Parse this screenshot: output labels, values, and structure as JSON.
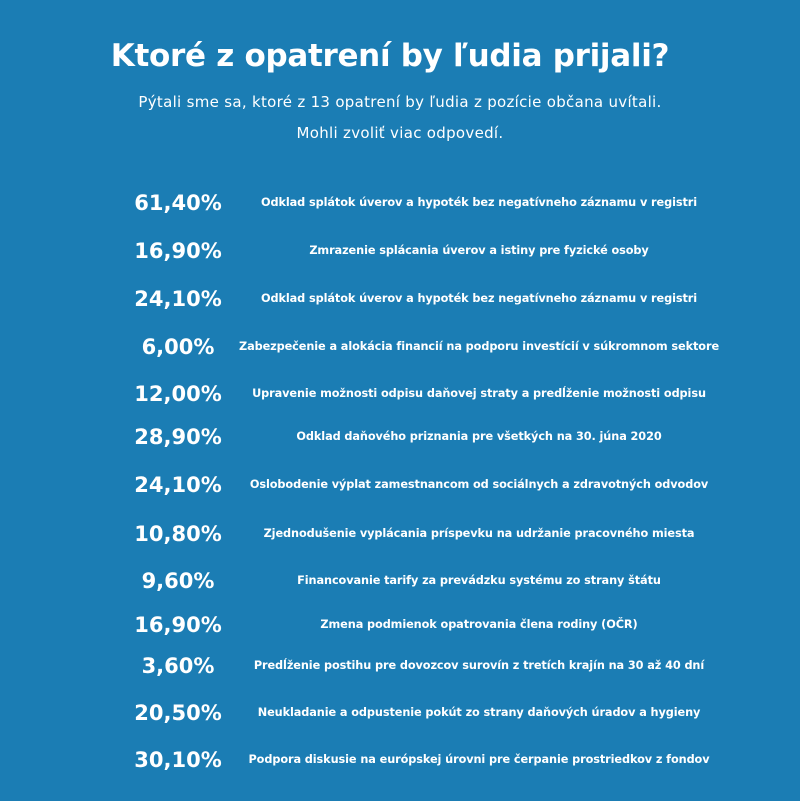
{
  "chart_data": {
    "type": "table",
    "title": "Ktoré z opatrení by ľudia prijali?",
    "subtitle_lines": [
      "Pýtali sme sa, ktoré z 13 opatrení by ľudia z pozície občana uvítali.",
      "Mohli zvoliť viac odpovedí."
    ],
    "rows": [
      {
        "value": 61.4,
        "value_label": "61,40%",
        "label": "Odklad splátok úverov a hypoték bez negatívneho záznamu v registri"
      },
      {
        "value": 16.9,
        "value_label": "16,90%",
        "label": "Zmrazenie splácania úverov a istiny pre fyzické osoby"
      },
      {
        "value": 24.1,
        "value_label": "24,10%",
        "label": "Odklad splátok úverov a hypoték bez negatívneho záznamu v registri"
      },
      {
        "value": 6.0,
        "value_label": "6,00%",
        "label": "Zabezpečenie a alokácia financií na podporu investícií v súkromnom sektore"
      },
      {
        "value": 12.0,
        "value_label": "12,00%",
        "label": "Upravenie možnosti odpisu daňovej straty a predĺženie možnosti odpisu"
      },
      {
        "value": 28.9,
        "value_label": "28,90%",
        "label": "Odklad daňového priznania pre všetkých na 30. júna 2020"
      },
      {
        "value": 24.1,
        "value_label": "24,10%",
        "label": "Oslobodenie výplat zamestnancom od sociálnych a zdravotných odvodov"
      },
      {
        "value": 10.8,
        "value_label": "10,80%",
        "label": "Zjednodušenie vyplácania príspevku na udržanie pracovného miesta"
      },
      {
        "value": 9.6,
        "value_label": "9,60%",
        "label": "Financovanie tarify za prevádzku systému zo strany štátu"
      },
      {
        "value": 16.9,
        "value_label": "16,90%",
        "label": "Zmena podmienok opatrovania člena rodiny (OČR)"
      },
      {
        "value": 3.6,
        "value_label": "3,60%",
        "label": "Predĺženie postihu pre dovozcov surovín z tretích krajín na 30 až 40 dní"
      },
      {
        "value": 20.5,
        "value_label": "20,50%",
        "label": "Neukladanie a odpustenie pokút zo strany daňových úradov a hygieny"
      },
      {
        "value": 30.1,
        "value_label": "30,10%",
        "label": "Podpora diskusie na európskej úrovni pre čerpanie prostriedkov z fondov"
      }
    ]
  },
  "colors": {
    "background": "#1b7db4",
    "text": "#ffffff"
  }
}
